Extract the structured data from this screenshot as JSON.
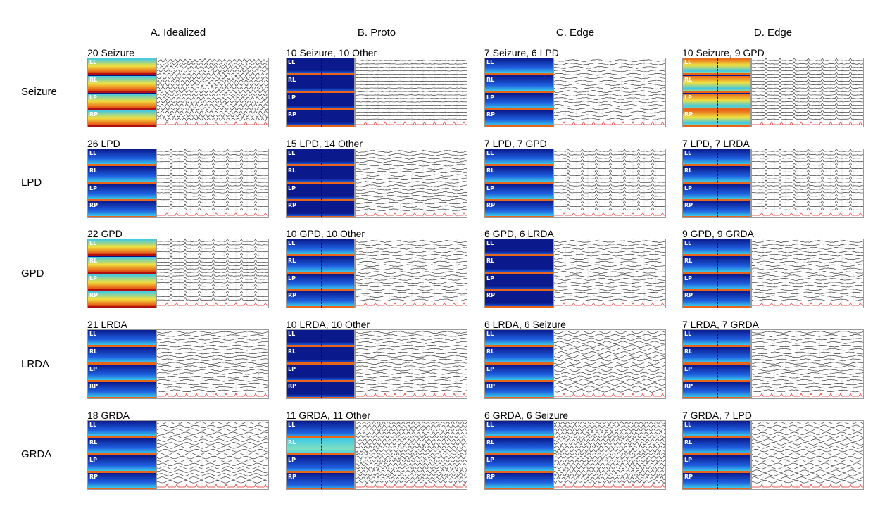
{
  "columns": [
    "A. Idealized",
    "B. Proto",
    "C. Edge",
    "D. Edge"
  ],
  "rows": [
    "Seizure",
    "LPD",
    "GPD",
    "LRDA",
    "GRDA"
  ],
  "channels": [
    "LL",
    "RL",
    "LP",
    "RP"
  ],
  "captions": [
    [
      "20 Seizure",
      "10 Seizure, 10 Other",
      "7 Seizure, 6 LPD",
      "10 Seizure, 9 GPD"
    ],
    [
      "26 LPD",
      "15 LPD, 14 Other",
      "7 LPD, 7 GPD",
      "7 LPD, 7 LRDA"
    ],
    [
      "22 GPD",
      "10 GPD, 10 Other",
      "6 GPD, 6 LRDA",
      "9 GPD, 9 GRDA"
    ],
    [
      "21 LRDA",
      "10 LRDA, 10 Other",
      "6 LRDA, 6 Seizure",
      "7 LRDA, 7 GRDA"
    ],
    [
      "18 GRDA",
      "11 GRDA, 11 Other",
      "6 GRDA, 6 Seizure",
      "7 GRDA, 7 LPD"
    ]
  ],
  "colors": {
    "spec_dark": "#0a1a8c",
    "spec_mid": "#1f5fe0",
    "spec_cyan": "#3cc8e8",
    "spec_yellow": "#f0e040",
    "spec_orange": "#e86418",
    "spec_red": "#b01010",
    "eeg_trace": "#111111",
    "ekg_trace": "#e02020"
  }
}
